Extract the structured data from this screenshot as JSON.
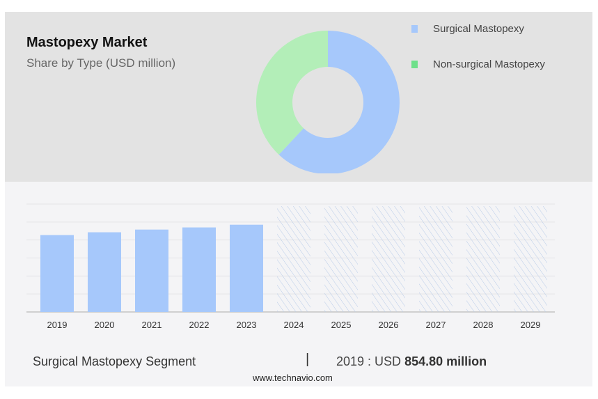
{
  "header": {
    "title": "Mastopexy Market",
    "subtitle": "Share by Type (USD million)"
  },
  "colors": {
    "surgical": "#a6c8fb",
    "non_surgical": "#b3eeb8",
    "non_surgical_legend": "#6ee08a",
    "hatch": "#b8cbe8"
  },
  "chart_data": [
    {
      "type": "pie",
      "donut": true,
      "legend": [
        "Surgical Mastopexy",
        "Non-surgical Mastopexy"
      ],
      "legend_placement": "top-right",
      "values": [
        62,
        38
      ]
    },
    {
      "type": "bar",
      "categories": [
        "2019",
        "2020",
        "2021",
        "2022",
        "2023",
        "2024",
        "2025",
        "2026",
        "2027",
        "2028",
        "2029"
      ],
      "values": [
        854.8,
        886,
        916,
        940,
        970,
        null,
        null,
        null,
        null,
        null,
        null
      ],
      "forecast_categories": [
        "2024",
        "2025",
        "2026",
        "2027",
        "2028",
        "2029"
      ],
      "ylim": [
        0,
        1200
      ],
      "grid": true,
      "xlabel": "",
      "ylabel": ""
    }
  ],
  "footer": {
    "segment": "Surgical Mastopexy Segment",
    "separator": "|",
    "value_prefix": "2019 : USD",
    "value_bold": "854.80 million",
    "url": "www.technavio.com"
  }
}
